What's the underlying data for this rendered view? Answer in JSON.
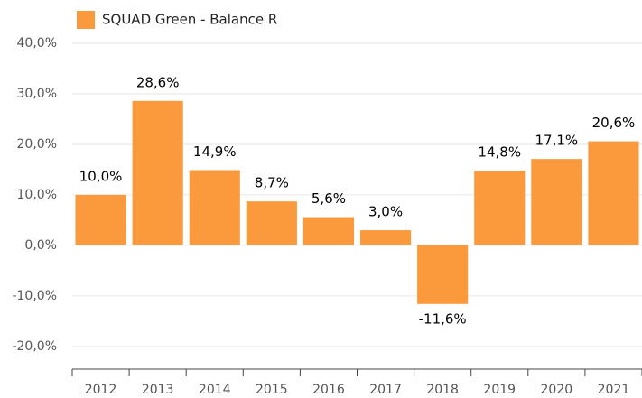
{
  "chart_data": {
    "type": "bar",
    "categories": [
      "2012",
      "2013",
      "2014",
      "2015",
      "2016",
      "2017",
      "2018",
      "2019",
      "2020",
      "2021"
    ],
    "series": [
      {
        "name": "SQUAD Green - Balance R",
        "color": "#fa9a3c",
        "values": [
          10.0,
          28.6,
          14.9,
          8.7,
          5.6,
          3.0,
          -11.6,
          14.8,
          17.1,
          20.6
        ],
        "value_labels": [
          "10,0%",
          "28,6%",
          "14,9%",
          "8,7%",
          "5,6%",
          "3,0%",
          "-11,6%",
          "14,8%",
          "17,1%",
          "20,6%"
        ]
      }
    ],
    "ylim": [
      -24.5,
      40
    ],
    "yticks": [
      {
        "value": -20,
        "label": "-20,0%"
      },
      {
        "value": -10,
        "label": "-10,0%"
      },
      {
        "value": 0,
        "label": "0,0%"
      },
      {
        "value": 10,
        "label": "10,0%"
      },
      {
        "value": 20,
        "label": "20,0%"
      },
      {
        "value": 30,
        "label": "30,0%"
      },
      {
        "value": 40,
        "label": "40,0%"
      }
    ],
    "grid": true,
    "legend": "top-left"
  }
}
